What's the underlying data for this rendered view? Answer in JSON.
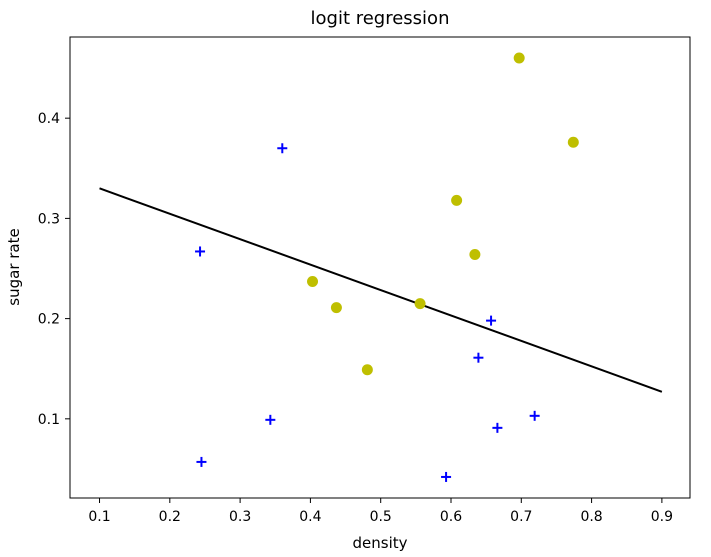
{
  "chart_data": {
    "type": "scatter",
    "title": "logit regression",
    "xlabel": "density",
    "ylabel": "sugar rate",
    "xlim": [
      0.058,
      0.94
    ],
    "ylim": [
      0.021,
      0.481
    ],
    "xticks": [
      0.1,
      0.2,
      0.3,
      0.4,
      0.5,
      0.6,
      0.7,
      0.8,
      0.9
    ],
    "xtick_labels": [
      "0.1",
      "0.2",
      "0.3",
      "0.4",
      "0.5",
      "0.6",
      "0.7",
      "0.8",
      "0.9"
    ],
    "yticks": [
      0.1,
      0.2,
      0.3,
      0.4
    ],
    "ytick_labels": [
      "0.1",
      "0.2",
      "0.3",
      "0.4"
    ],
    "grid": false,
    "series": [
      {
        "marker": "circle",
        "color": "#bfbf00",
        "points": [
          {
            "x": 0.697,
            "y": 0.46
          },
          {
            "x": 0.774,
            "y": 0.376
          },
          {
            "x": 0.608,
            "y": 0.318
          },
          {
            "x": 0.634,
            "y": 0.264
          },
          {
            "x": 0.403,
            "y": 0.237
          },
          {
            "x": 0.437,
            "y": 0.211
          },
          {
            "x": 0.556,
            "y": 0.215
          },
          {
            "x": 0.481,
            "y": 0.149
          }
        ]
      },
      {
        "marker": "plus",
        "color": "#0000ff",
        "points": [
          {
            "x": 0.36,
            "y": 0.37
          },
          {
            "x": 0.243,
            "y": 0.267
          },
          {
            "x": 0.657,
            "y": 0.198
          },
          {
            "x": 0.639,
            "y": 0.161
          },
          {
            "x": 0.719,
            "y": 0.103
          },
          {
            "x": 0.666,
            "y": 0.091
          },
          {
            "x": 0.343,
            "y": 0.099
          },
          {
            "x": 0.245,
            "y": 0.057
          },
          {
            "x": 0.593,
            "y": 0.042
          }
        ]
      }
    ],
    "regression_line": {
      "color": "#000000",
      "points": [
        {
          "x": 0.1,
          "y": 0.33
        },
        {
          "x": 0.9,
          "y": 0.127
        }
      ]
    }
  }
}
